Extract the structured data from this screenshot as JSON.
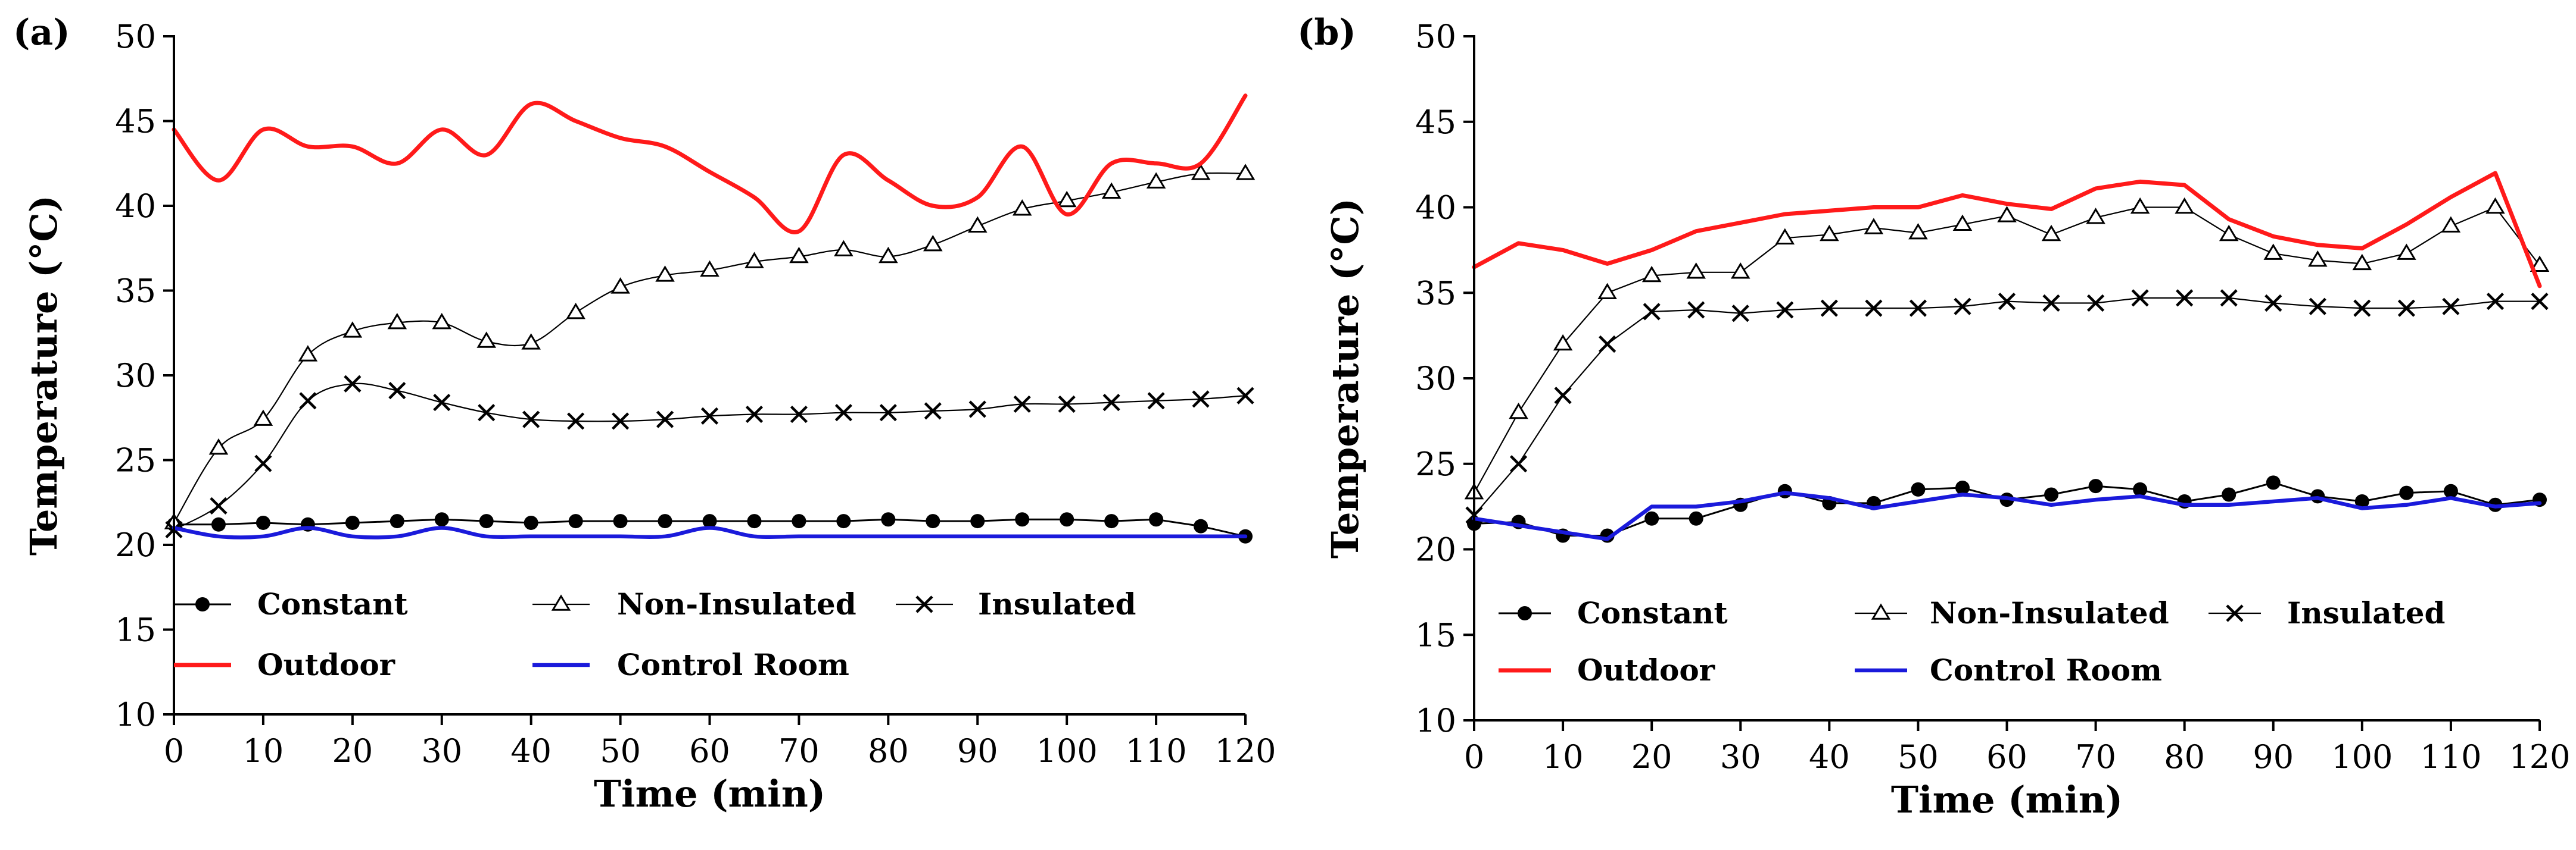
{
  "chart_data": [
    {
      "type": "line",
      "panel_label": "(a)",
      "xlabel": "Time (min)",
      "ylabel": "Temperature (°C)",
      "xlim": [
        0,
        120
      ],
      "ylim": [
        10,
        50
      ],
      "x_ticks": [
        0,
        10,
        20,
        30,
        40,
        50,
        60,
        70,
        80,
        90,
        100,
        110,
        120
      ],
      "y_ticks": [
        10,
        15,
        20,
        25,
        30,
        35,
        40,
        45,
        50
      ],
      "grid": false,
      "legend_position": "lower-left inside",
      "series": [
        {
          "name": "Constant",
          "marker": "circle",
          "color": "#000000",
          "smooth": false,
          "x": [
            0,
            5,
            10,
            15,
            20,
            25,
            30,
            35,
            40,
            45,
            50,
            55,
            60,
            65,
            70,
            75,
            80,
            85,
            90,
            95,
            100,
            105,
            110,
            115,
            120
          ],
          "y": [
            21.2,
            21.2,
            21.3,
            21.2,
            21.3,
            21.4,
            21.5,
            21.4,
            21.3,
            21.4,
            21.4,
            21.4,
            21.4,
            21.4,
            21.4,
            21.4,
            21.5,
            21.4,
            21.4,
            21.5,
            21.5,
            21.4,
            21.5,
            21.1,
            20.5
          ]
        },
        {
          "name": "Non-Insulated",
          "marker": "triangle",
          "color": "#000000",
          "smooth": true,
          "x": [
            0,
            5,
            10,
            15,
            20,
            25,
            30,
            35,
            40,
            45,
            50,
            55,
            60,
            65,
            70,
            75,
            80,
            85,
            90,
            95,
            100,
            105,
            110,
            115,
            120
          ],
          "y": [
            21.3,
            25.7,
            27.4,
            31.2,
            32.6,
            33.1,
            33.1,
            32.0,
            31.9,
            33.7,
            35.2,
            35.9,
            36.2,
            36.7,
            37.0,
            37.4,
            37.0,
            37.7,
            38.8,
            39.8,
            40.3,
            40.8,
            41.4,
            41.9,
            41.9
          ]
        },
        {
          "name": "Insulated",
          "marker": "x",
          "color": "#000000",
          "smooth": true,
          "x": [
            0,
            5,
            10,
            15,
            20,
            25,
            30,
            35,
            40,
            45,
            50,
            55,
            60,
            65,
            70,
            75,
            80,
            85,
            90,
            95,
            100,
            105,
            110,
            115,
            120
          ],
          "y": [
            20.9,
            22.3,
            24.8,
            28.5,
            29.5,
            29.1,
            28.4,
            27.8,
            27.4,
            27.3,
            27.3,
            27.4,
            27.6,
            27.7,
            27.7,
            27.8,
            27.8,
            27.9,
            28.0,
            28.3,
            28.3,
            28.4,
            28.5,
            28.6,
            28.8
          ]
        },
        {
          "name": "Outdoor",
          "marker": "none",
          "color": "#ff1a1a",
          "smooth": true,
          "x": [
            0,
            5,
            10,
            15,
            20,
            25,
            30,
            35,
            40,
            45,
            50,
            55,
            60,
            65,
            70,
            75,
            80,
            85,
            90,
            95,
            100,
            105,
            110,
            115,
            120
          ],
          "y": [
            44.5,
            41.5,
            44.5,
            43.5,
            43.5,
            42.5,
            44.5,
            43.0,
            46.0,
            45.0,
            44.0,
            43.5,
            42.0,
            40.5,
            38.5,
            43.0,
            41.5,
            40.0,
            40.5,
            43.5,
            39.5,
            42.5,
            42.5,
            42.5,
            46.5
          ]
        },
        {
          "name": "Control Room",
          "marker": "none",
          "color": "#1a1adb",
          "smooth": true,
          "x": [
            0,
            5,
            10,
            15,
            20,
            25,
            30,
            35,
            40,
            45,
            50,
            55,
            60,
            65,
            70,
            75,
            80,
            85,
            90,
            95,
            100,
            105,
            110,
            115,
            120
          ],
          "y": [
            21.0,
            20.5,
            20.5,
            21.0,
            20.5,
            20.5,
            21.0,
            20.5,
            20.5,
            20.5,
            20.5,
            20.5,
            21.0,
            20.5,
            20.5,
            20.5,
            20.5,
            20.5,
            20.5,
            20.5,
            20.5,
            20.5,
            20.5,
            20.5,
            20.5
          ]
        }
      ]
    },
    {
      "type": "line",
      "panel_label": "(b)",
      "xlabel": "Time (min)",
      "ylabel": "Temperature (°C)",
      "xlim": [
        0,
        120
      ],
      "ylim": [
        10,
        50
      ],
      "x_ticks": [
        0,
        10,
        20,
        30,
        40,
        50,
        60,
        70,
        80,
        90,
        100,
        110,
        120
      ],
      "y_ticks": [
        10,
        15,
        20,
        25,
        30,
        35,
        40,
        45,
        50
      ],
      "grid": false,
      "legend_position": "lower-left inside",
      "series": [
        {
          "name": "Constant",
          "marker": "circle",
          "color": "#000000",
          "smooth": false,
          "x": [
            0,
            5,
            10,
            15,
            20,
            25,
            30,
            35,
            40,
            45,
            50,
            55,
            60,
            65,
            70,
            75,
            80,
            85,
            90,
            95,
            100,
            105,
            110,
            115,
            120
          ],
          "y": [
            21.5,
            21.6,
            20.8,
            20.8,
            21.8,
            21.8,
            22.6,
            23.4,
            22.7,
            22.7,
            23.5,
            23.6,
            22.9,
            23.2,
            23.7,
            23.5,
            22.8,
            23.2,
            23.9,
            23.1,
            22.8,
            23.3,
            23.4,
            22.6,
            22.9
          ]
        },
        {
          "name": "Non-Insulated",
          "marker": "triangle",
          "color": "#000000",
          "smooth": false,
          "x": [
            0,
            5,
            10,
            15,
            20,
            25,
            30,
            35,
            40,
            45,
            50,
            55,
            60,
            65,
            70,
            75,
            80,
            85,
            90,
            95,
            100,
            105,
            110,
            115,
            120
          ],
          "y": [
            23.3,
            28.0,
            32.0,
            35.0,
            36.0,
            36.2,
            36.2,
            38.2,
            38.4,
            38.8,
            38.5,
            39.0,
            39.5,
            38.4,
            39.4,
            40.0,
            40.0,
            38.4,
            37.3,
            36.9,
            36.7,
            37.3,
            38.9,
            40.0,
            36.6
          ]
        },
        {
          "name": "Insulated",
          "marker": "x",
          "color": "#000000",
          "smooth": false,
          "x": [
            0,
            5,
            10,
            15,
            20,
            25,
            30,
            35,
            40,
            45,
            50,
            55,
            60,
            65,
            70,
            75,
            80,
            85,
            90,
            95,
            100,
            105,
            110,
            115,
            120
          ],
          "y": [
            22.0,
            25.0,
            29.0,
            32.0,
            33.9,
            34.0,
            33.8,
            34.0,
            34.1,
            34.1,
            34.1,
            34.2,
            34.5,
            34.4,
            34.4,
            34.7,
            34.7,
            34.7,
            34.4,
            34.2,
            34.1,
            34.1,
            34.2,
            34.5,
            34.5
          ]
        },
        {
          "name": "Outdoor",
          "marker": "none",
          "color": "#ff1a1a",
          "smooth": false,
          "x": [
            0,
            5,
            10,
            15,
            20,
            25,
            30,
            35,
            40,
            45,
            50,
            55,
            60,
            65,
            70,
            75,
            80,
            85,
            90,
            95,
            100,
            105,
            110,
            115,
            120
          ],
          "y": [
            36.5,
            37.9,
            37.5,
            36.7,
            37.5,
            38.6,
            39.1,
            39.6,
            39.8,
            40.0,
            40.0,
            40.7,
            40.2,
            39.9,
            41.1,
            41.5,
            41.3,
            39.3,
            38.3,
            37.8,
            37.6,
            39.0,
            40.6,
            42.0,
            35.4
          ]
        },
        {
          "name": "Control Room",
          "marker": "none",
          "color": "#1a1adb",
          "smooth": false,
          "x": [
            0,
            5,
            10,
            15,
            20,
            25,
            30,
            35,
            40,
            45,
            50,
            55,
            60,
            65,
            70,
            75,
            80,
            85,
            90,
            95,
            100,
            105,
            110,
            115,
            120
          ],
          "y": [
            21.8,
            21.4,
            21.0,
            20.6,
            22.5,
            22.5,
            22.8,
            23.3,
            23.0,
            22.4,
            22.8,
            23.2,
            23.0,
            22.6,
            22.9,
            23.1,
            22.6,
            22.6,
            22.8,
            23.0,
            22.4,
            22.6,
            23.0,
            22.5,
            22.7
          ]
        }
      ]
    }
  ]
}
